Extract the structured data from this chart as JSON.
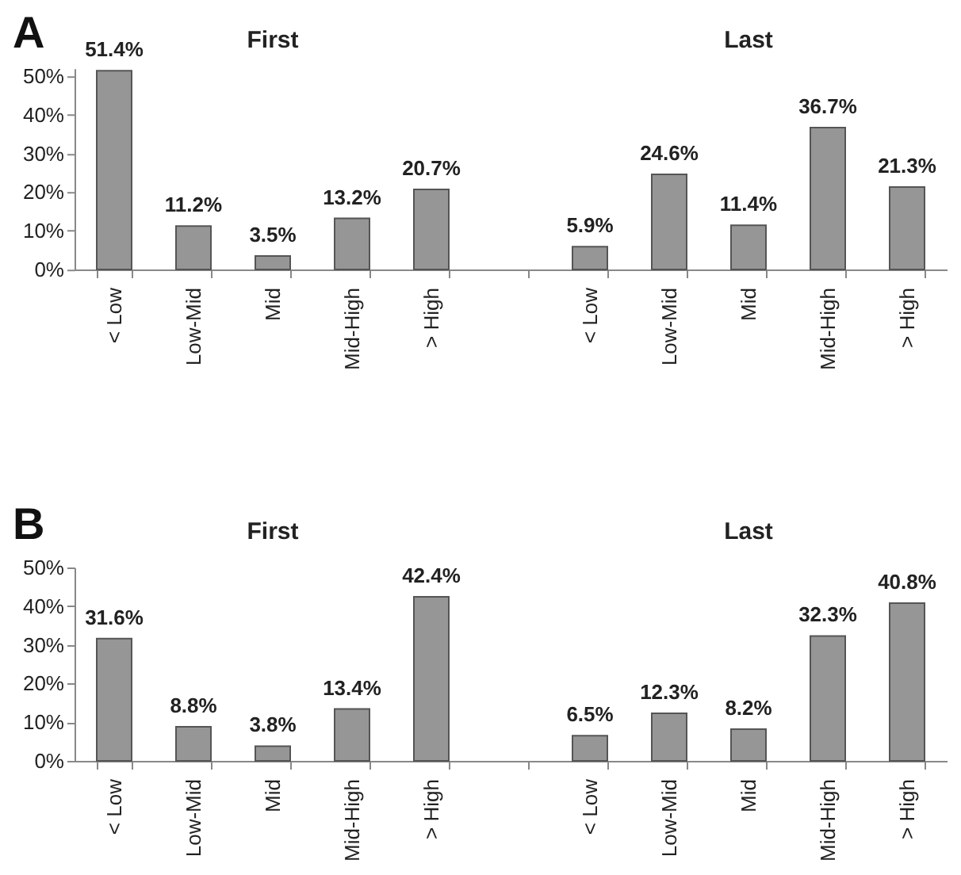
{
  "chart_data": [
    {
      "type": "bar",
      "title": "A",
      "annotations": [
        "First",
        "Last"
      ],
      "categories": [
        "< Low",
        "Low-Mid",
        "Mid",
        "Mid-High",
        "> High",
        null,
        "< Low",
        "Low-Mid",
        "Mid",
        "Mid-High",
        "> High"
      ],
      "values": [
        51.4,
        11.2,
        3.5,
        13.2,
        20.7,
        null,
        5.9,
        24.6,
        11.4,
        36.7,
        21.3
      ],
      "value_labels": [
        "51.4%",
        "11.2%",
        "3.5%",
        "13.2%",
        "20.7%",
        null,
        "5.9%",
        "24.6%",
        "11.4%",
        "36.7%",
        "21.3%"
      ],
      "color": "#969696",
      "ylim": [
        0,
        52
      ],
      "yticks": [
        {
          "value": 0,
          "label": "0%"
        },
        {
          "value": 10,
          "label": "10%"
        },
        {
          "value": 20,
          "label": "20%"
        },
        {
          "value": 30,
          "label": "30%"
        },
        {
          "value": 40,
          "label": "40%"
        },
        {
          "value": 50,
          "label": "50%"
        }
      ]
    },
    {
      "type": "bar",
      "title": "B",
      "annotations": [
        "First",
        "Last"
      ],
      "categories": [
        "< Low",
        "Low-Mid",
        "Mid",
        "Mid-High",
        "> High",
        null,
        "< Low",
        "Low-Mid",
        "Mid",
        "Mid-High",
        "> High"
      ],
      "values": [
        31.6,
        8.8,
        3.8,
        13.4,
        42.4,
        null,
        6.5,
        12.3,
        8.2,
        32.3,
        40.8
      ],
      "value_labels": [
        "31.6%",
        "8.8%",
        "3.8%",
        "13.4%",
        "42.4%",
        null,
        "6.5%",
        "12.3%",
        "8.2%",
        "32.3%",
        "40.8%"
      ],
      "color": "#969696",
      "ylim": [
        0,
        50
      ],
      "yticks": [
        {
          "value": 0,
          "label": "0%"
        },
        {
          "value": 10,
          "label": "10%"
        },
        {
          "value": 20,
          "label": "20%"
        },
        {
          "value": 30,
          "label": "30%"
        },
        {
          "value": 40,
          "label": "40%"
        },
        {
          "value": 50,
          "label": "50%"
        }
      ]
    }
  ]
}
